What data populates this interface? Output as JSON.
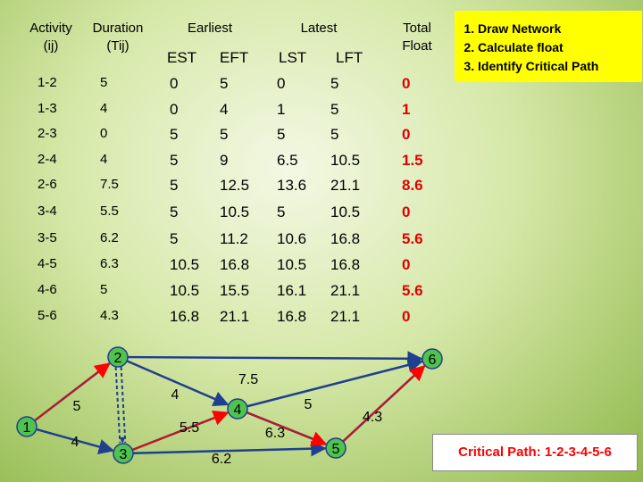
{
  "table": {
    "headers": {
      "activity": "Activity\n(ij)",
      "duration": "Duration\n(Tij)",
      "earliest": "Earliest",
      "latest": "Latest",
      "total_float": "Total\nFloat",
      "est": "EST",
      "eft": "EFT",
      "lst": "LST",
      "lft": "LFT"
    },
    "rows": [
      {
        "activity": "1-2",
        "duration": "5",
        "est": "0",
        "eft": "5",
        "lst": "0",
        "lft": "5",
        "float": "0"
      },
      {
        "activity": "1-3",
        "duration": "4",
        "est": "0",
        "eft": "4",
        "lst": "1",
        "lft": "5",
        "float": "1"
      },
      {
        "activity": "2-3",
        "duration": "0",
        "est": "5",
        "eft": "5",
        "lst": "5",
        "lft": "5",
        "float": "0"
      },
      {
        "activity": "2-4",
        "duration": "4",
        "est": "5",
        "eft": "9",
        "lst": "6.5",
        "lft": "10.5",
        "float": "1.5"
      },
      {
        "activity": "2-6",
        "duration": "7.5",
        "est": "5",
        "eft": "12.5",
        "lst": "13.6",
        "lft": "21.1",
        "float": "8.6"
      },
      {
        "activity": "3-4",
        "duration": "5.5",
        "est": "5",
        "eft": "10.5",
        "lst": "5",
        "lft": "10.5",
        "float": "0"
      },
      {
        "activity": "3-5",
        "duration": "6.2",
        "est": "5",
        "eft": "11.2",
        "lst": "10.6",
        "lft": "16.8",
        "float": "5.6"
      },
      {
        "activity": "4-5",
        "duration": "6.3",
        "est": "10.5",
        "eft": "16.8",
        "lst": "10.5",
        "lft": "16.8",
        "float": "0"
      },
      {
        "activity": "4-6",
        "duration": "5",
        "est": "10.5",
        "eft": "15.5",
        "lst": "16.1",
        "lft": "21.1",
        "float": "5.6"
      },
      {
        "activity": "5-6",
        "duration": "4.3",
        "est": "16.8",
        "eft": "21.1",
        "lst": "16.8",
        "lft": "21.1",
        "float": "0"
      }
    ]
  },
  "legend": {
    "items": [
      "Draw  Network",
      "Calculate float",
      "Identify Critical Path"
    ]
  },
  "network": {
    "nodes": [
      {
        "id": "1",
        "label": "1"
      },
      {
        "id": "2",
        "label": "2"
      },
      {
        "id": "3",
        "label": "3"
      },
      {
        "id": "4",
        "label": "4"
      },
      {
        "id": "5",
        "label": "5"
      },
      {
        "id": "6",
        "label": "6"
      }
    ],
    "edges": [
      {
        "from": "1",
        "to": "2",
        "label": "5",
        "critical": true,
        "dummy": false
      },
      {
        "from": "1",
        "to": "3",
        "label": "4",
        "critical": false,
        "dummy": false
      },
      {
        "from": "2",
        "to": "3",
        "label": "",
        "critical": true,
        "dummy": true
      },
      {
        "from": "2",
        "to": "4",
        "label": "4",
        "critical": false,
        "dummy": false
      },
      {
        "from": "2",
        "to": "6",
        "label": "7.5",
        "critical": false,
        "dummy": false
      },
      {
        "from": "3",
        "to": "4",
        "label": "5.5",
        "critical": true,
        "dummy": false
      },
      {
        "from": "3",
        "to": "5",
        "label": "6.2",
        "critical": false,
        "dummy": false
      },
      {
        "from": "4",
        "to": "5",
        "label": "6.3",
        "critical": true,
        "dummy": false
      },
      {
        "from": "4",
        "to": "6",
        "label": "5",
        "critical": false,
        "dummy": false
      },
      {
        "from": "5",
        "to": "6",
        "label": "4.3",
        "critical": true,
        "dummy": false
      }
    ],
    "colors": {
      "edge": "#1f3f8f",
      "critical": "#ff0000",
      "node_fill": "#4fc24f",
      "node_stroke": "#1f3f8f"
    }
  },
  "critical_path": "Critical Path: 1-2-3-4-5-6"
}
